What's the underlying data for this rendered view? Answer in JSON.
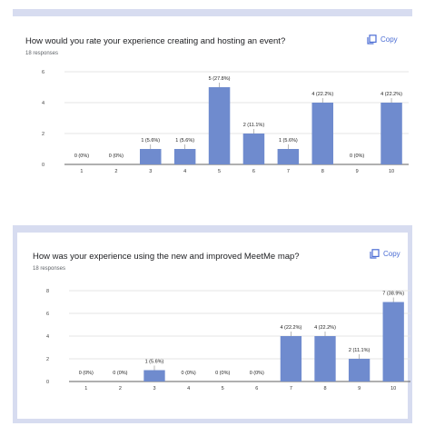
{
  "colors": {
    "accent": "#4a6cd4",
    "bar": "#6f8bce",
    "grid": "#e6e6e6",
    "card_border": "#d7dcf0"
  },
  "questions": [
    {
      "title": "How would you rate your experience creating and hosting an event?",
      "responses": "18 responses",
      "copy_label": "Copy"
    },
    {
      "title": "How was your experience using the new and improved MeetMe map?",
      "responses": "18 responses",
      "copy_label": "Copy"
    }
  ],
  "chart_data": [
    {
      "type": "bar",
      "categories": [
        "1",
        "2",
        "3",
        "4",
        "5",
        "6",
        "7",
        "8",
        "9",
        "10"
      ],
      "values": [
        0,
        0,
        1,
        1,
        5,
        2,
        1,
        4,
        0,
        4
      ],
      "data_labels": [
        "0 (0%)",
        "0 (0%)",
        "1 (5.6%)",
        "1 (5.6%)",
        "5 (27.8%)",
        "2 (11.1%)",
        "1 (5.6%)",
        "4 (22.2%)",
        "0 (0%)",
        "4 (22.2%)"
      ],
      "y_ticks": [
        "0",
        "2",
        "4",
        "6"
      ],
      "ylim": [
        0,
        6
      ],
      "grid": true
    },
    {
      "type": "bar",
      "categories": [
        "1",
        "2",
        "3",
        "4",
        "5",
        "6",
        "7",
        "8",
        "9",
        "10"
      ],
      "values": [
        0,
        0,
        1,
        0,
        0,
        0,
        4,
        4,
        2,
        7
      ],
      "data_labels": [
        "0 (0%)",
        "0 (0%)",
        "1 (5.6%)",
        "0 (0%)",
        "0 (0%)",
        "0 (0%)",
        "4 (22.2%)",
        "4 (22.2%)",
        "2 (11.1%)",
        "7 (38.9%)"
      ],
      "y_ticks": [
        "0",
        "2",
        "4",
        "6",
        "8"
      ],
      "ylim": [
        0,
        8
      ],
      "grid": true
    }
  ]
}
